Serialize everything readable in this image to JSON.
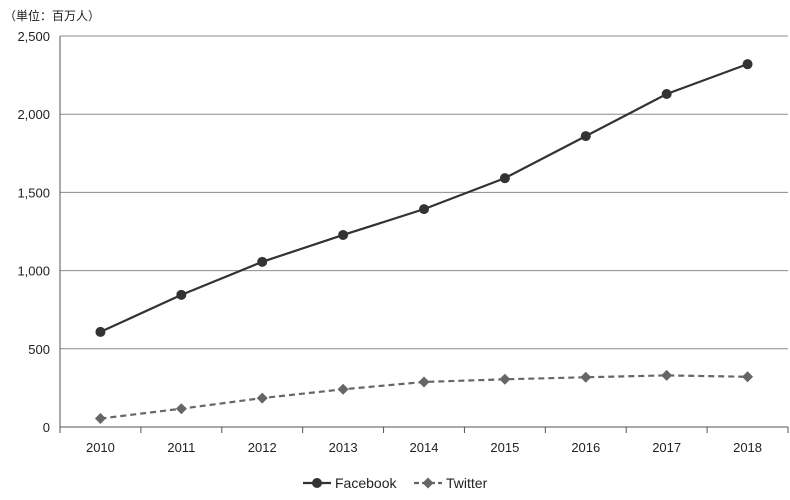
{
  "chart_data": {
    "type": "line",
    "unit_note": "（単位：百万人）",
    "categories": [
      "2010",
      "2011",
      "2012",
      "2013",
      "2014",
      "2015",
      "2016",
      "2017",
      "2018"
    ],
    "yticks": [
      "0",
      "500",
      "1,000",
      "1,500",
      "2,000",
      "2,500"
    ],
    "ylim": [
      0,
      2500
    ],
    "grid": "horizontal",
    "legend_position": "bottom",
    "series": [
      {
        "name": "Facebook",
        "values": [
          608,
          845,
          1056,
          1228,
          1393,
          1591,
          1860,
          2129,
          2320
        ],
        "color": "#333333",
        "line_style": "solid",
        "marker": "circle"
      },
      {
        "name": "Twitter",
        "values": [
          54,
          117,
          185,
          241,
          288,
          305,
          318,
          330,
          321
        ],
        "color": "#666666",
        "line_style": "dashed",
        "marker": "diamond"
      }
    ]
  }
}
